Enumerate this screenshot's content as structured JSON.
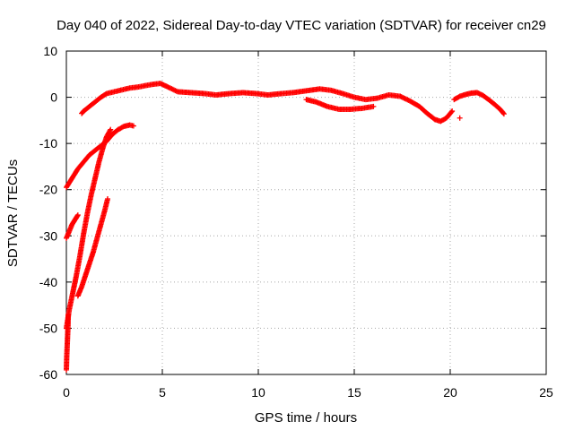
{
  "chart_data": {
    "type": "scatter",
    "title": "Day 040 of 2022, Sidereal Day-to-day VTEC variation (SDTVAR) for receiver cn29",
    "xlabel": "GPS time / hours",
    "ylabel": "SDTVAR / TECUs",
    "xlim": [
      0,
      25
    ],
    "ylim": [
      -60,
      10
    ],
    "xticks": [
      "0",
      "5",
      "10",
      "15",
      "20",
      "25"
    ],
    "yticks": [
      "10",
      "0",
      "-10",
      "-20",
      "-30",
      "-40",
      "-50",
      "-60"
    ],
    "grid": true,
    "marker": "+",
    "series": [
      {
        "name": "main-trace",
        "color": "#ff0000",
        "x": [
          0.8,
          0.9,
          1.2,
          1.5,
          1.8,
          2.1,
          2.5,
          2.9,
          3.3,
          3.7,
          4.1,
          4.5,
          4.9,
          5.3,
          5.8,
          6.5,
          7.2,
          7.8,
          8.5,
          9.2,
          9.9,
          10.5,
          11.2,
          11.8,
          12.5,
          13.2,
          13.8,
          14.4,
          15.0,
          15.6,
          16.2,
          16.8,
          17.4,
          17.9,
          18.4,
          18.8,
          19.2,
          19.5,
          19.8,
          20.1
        ],
        "y": [
          -3.5,
          -3.0,
          -2.0,
          -1.0,
          0.0,
          0.8,
          1.2,
          1.6,
          2.0,
          2.2,
          2.5,
          2.8,
          3.0,
          2.2,
          1.2,
          1.0,
          0.8,
          0.5,
          0.8,
          1.0,
          0.8,
          0.5,
          0.8,
          1.0,
          1.4,
          1.8,
          1.5,
          0.8,
          0.0,
          -0.5,
          -0.2,
          0.5,
          0.2,
          -0.8,
          -2.0,
          -3.5,
          -4.8,
          -5.2,
          -4.5,
          -3.0
        ]
      },
      {
        "name": "late-trace",
        "color": "#ff0000",
        "x": [
          20.2,
          20.5,
          20.8,
          21.1,
          21.4,
          21.7,
          22.0,
          22.3,
          22.6,
          22.8
        ],
        "y": [
          -0.5,
          0.2,
          0.6,
          0.9,
          1.0,
          0.4,
          -0.5,
          -1.5,
          -2.6,
          -3.6
        ]
      },
      {
        "name": "secondary-trace",
        "color": "#ff0000",
        "x": [
          12.5,
          13.0,
          13.6,
          14.2,
          14.8,
          15.4,
          16.0
        ],
        "y": [
          -0.5,
          -1.0,
          -2.0,
          -2.6,
          -2.6,
          -2.4,
          -2.0
        ]
      },
      {
        "name": "recovery-arc",
        "color": "#ff0000",
        "x": [
          0.0,
          0.3,
          0.6,
          0.9,
          1.2,
          1.5,
          1.8,
          2.1,
          2.4,
          2.7,
          3.0,
          3.3,
          3.5
        ],
        "y": [
          -19.5,
          -17.5,
          -15.5,
          -14.0,
          -12.5,
          -11.5,
          -10.5,
          -9.5,
          -8.0,
          -7.0,
          -6.3,
          -6.0,
          -6.2
        ]
      },
      {
        "name": "steep-rise",
        "color": "#ff0000",
        "x": [
          0.0,
          0.15,
          0.3,
          0.5,
          0.7,
          0.9,
          1.1,
          1.3,
          1.5,
          1.7,
          1.9,
          2.1,
          2.3
        ],
        "y": [
          -50.0,
          -46.0,
          -43.0,
          -39.0,
          -34.5,
          -29.5,
          -25.0,
          -21.0,
          -17.5,
          -14.0,
          -11.0,
          -8.5,
          -7.0
        ]
      },
      {
        "name": "low-segment",
        "color": "#ff0000",
        "x": [
          0.6,
          0.8,
          1.0,
          1.2,
          1.4,
          1.6,
          1.8,
          2.0,
          2.15
        ],
        "y": [
          -43.0,
          -41.0,
          -38.5,
          -36.0,
          -33.5,
          -30.5,
          -27.5,
          -24.5,
          -22.0
        ]
      },
      {
        "name": "short-segment",
        "color": "#ff0000",
        "x": [
          0.0,
          0.15,
          0.3,
          0.45,
          0.6
        ],
        "y": [
          -30.5,
          -29.0,
          -27.5,
          -26.5,
          -25.5
        ]
      },
      {
        "name": "dropout-tail",
        "color": "#ff0000",
        "x": [
          0.0,
          0.02,
          0.05,
          0.08,
          0.1
        ],
        "y": [
          -59.0,
          -56.0,
          -53.0,
          -50.0,
          -47.0
        ]
      },
      {
        "name": "isolated-point",
        "color": "#ff0000",
        "x": [
          20.5
        ],
        "y": [
          -4.5
        ]
      }
    ]
  }
}
